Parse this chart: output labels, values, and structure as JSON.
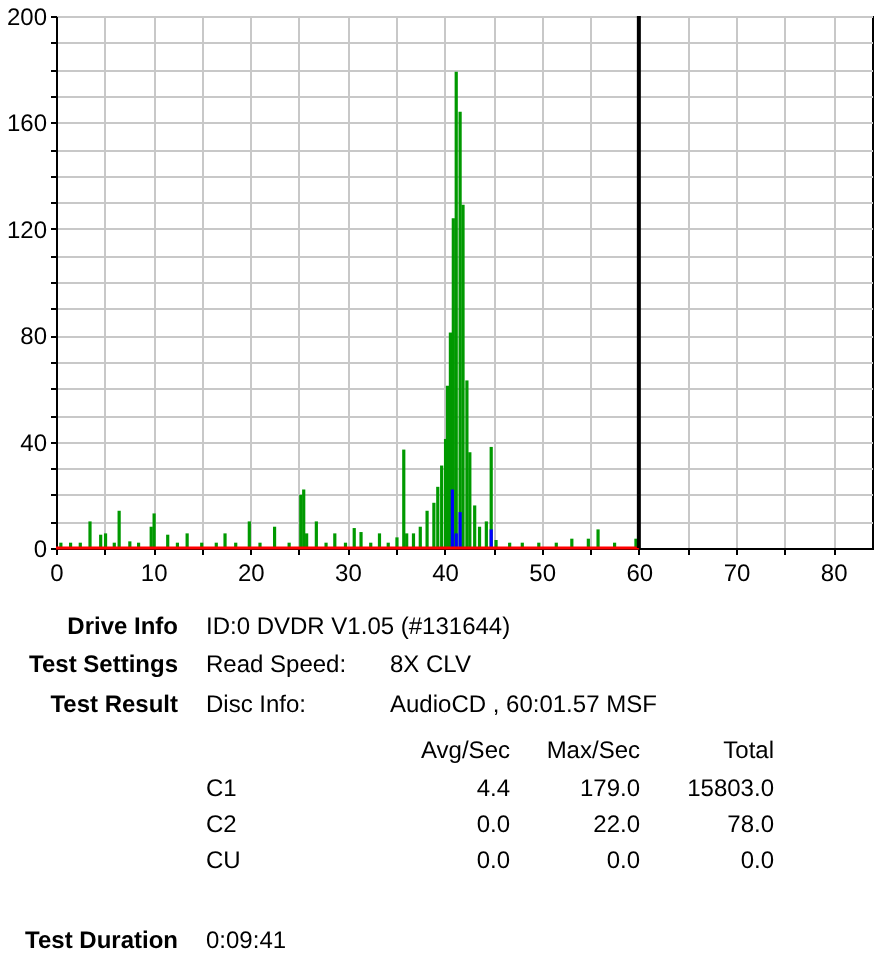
{
  "chart_data": {
    "type": "bar",
    "xlim": [
      0,
      84
    ],
    "ylim": [
      0,
      200
    ],
    "xticks": [
      0,
      {
        "value": 5,
        "label": null
      },
      10,
      {
        "value": 15,
        "label": null
      },
      20,
      {
        "value": 25,
        "label": null
      },
      30,
      {
        "value": 35,
        "label": null
      },
      40,
      {
        "value": 45,
        "label": null
      },
      50,
      {
        "value": 55,
        "label": null
      },
      60,
      {
        "value": 65,
        "label": null
      },
      70,
      {
        "value": 75,
        "label": null
      },
      80
    ],
    "yticks": [
      0,
      {
        "value": 10,
        "label": null
      },
      {
        "value": 20,
        "label": null
      },
      {
        "value": 30,
        "label": null
      },
      40,
      {
        "value": 50,
        "label": null
      },
      {
        "value": 60,
        "label": null
      },
      {
        "value": 70,
        "label": null
      },
      80,
      {
        "value": 90,
        "label": null
      },
      {
        "value": 100,
        "label": null
      },
      {
        "value": 110,
        "label": null
      },
      120,
      {
        "value": 130,
        "label": null
      },
      {
        "value": 140,
        "label": null
      },
      {
        "value": 150,
        "label": null
      },
      160,
      {
        "value": 170,
        "label": null
      },
      {
        "value": 180,
        "label": null
      },
      {
        "value": 190,
        "label": null
      },
      200
    ],
    "grid": true,
    "series": [
      {
        "color": "#009900",
        "x": [
          0.5,
          1.5,
          2.5,
          3.5,
          4.6,
          5.1,
          6.0,
          6.5,
          7.6,
          8.5,
          9.8,
          10.1,
          11.5,
          12.5,
          13.5,
          15.0,
          16.5,
          17.4,
          18.5,
          19.9,
          21.0,
          22.5,
          24.0,
          25.2,
          25.5,
          25.8,
          26.8,
          27.8,
          28.7,
          29.8,
          30.7,
          31.4,
          32.4,
          33.3,
          34.2,
          35.1,
          35.8,
          36.1,
          36.8,
          37.5,
          38.2,
          38.9,
          39.3,
          39.7,
          40.1,
          40.3,
          40.6,
          40.9,
          41.2,
          41.6,
          41.9,
          42.3,
          42.6,
          43.1,
          43.6,
          44.3,
          44.8,
          45.3,
          46.7,
          48.0,
          49.7,
          51.5,
          53.1,
          54.8,
          55.8,
          57.5,
          59.7
        ],
        "values": [
          2,
          2,
          2,
          10,
          5,
          5.5,
          2,
          14,
          2.5,
          2,
          8,
          13,
          5,
          2,
          5.5,
          2,
          2,
          5.5,
          2,
          10,
          2,
          8,
          2,
          20,
          22,
          5.5,
          10,
          2,
          5.5,
          2,
          7.5,
          6,
          2,
          5.5,
          2,
          4,
          37,
          5.5,
          5.5,
          8,
          14,
          17,
          23,
          31,
          41,
          61,
          81,
          124,
          179,
          164,
          129,
          63,
          36,
          16,
          8,
          10,
          38,
          3,
          2,
          2,
          2,
          2,
          3.5,
          3.5,
          7,
          2,
          3.5
        ]
      },
      {
        "color": "#0000ff",
        "x": [
          40.8,
          41.2,
          41.6,
          44.8
        ],
        "values": [
          22,
          5.5,
          13.5,
          7
        ]
      },
      {
        "type": "line",
        "color": "#ff0000",
        "x": [
          0,
          60
        ],
        "values": [
          0,
          0
        ]
      }
    ],
    "ref_lines": [
      {
        "axis": "x",
        "value": 60,
        "color": "#000000"
      }
    ],
    "annotations": [
      "Drive Info",
      "ID:0 DVDR V1.05 (#131644)",
      "Test Settings",
      "Read Speed:",
      "8X CLV",
      "Test Result",
      "Disc Info:",
      "AudioCD , 60:01.57 MSF",
      "Avg/Sec",
      "Max/Sec",
      "Total",
      "C1",
      "4.4",
      "179.0",
      "15803.0",
      "C2",
      "0.0",
      "22.0",
      "78.0",
      "CU",
      "0.0",
      "0.0",
      "0.0",
      "Test Duration",
      "0:09:41"
    ]
  }
}
